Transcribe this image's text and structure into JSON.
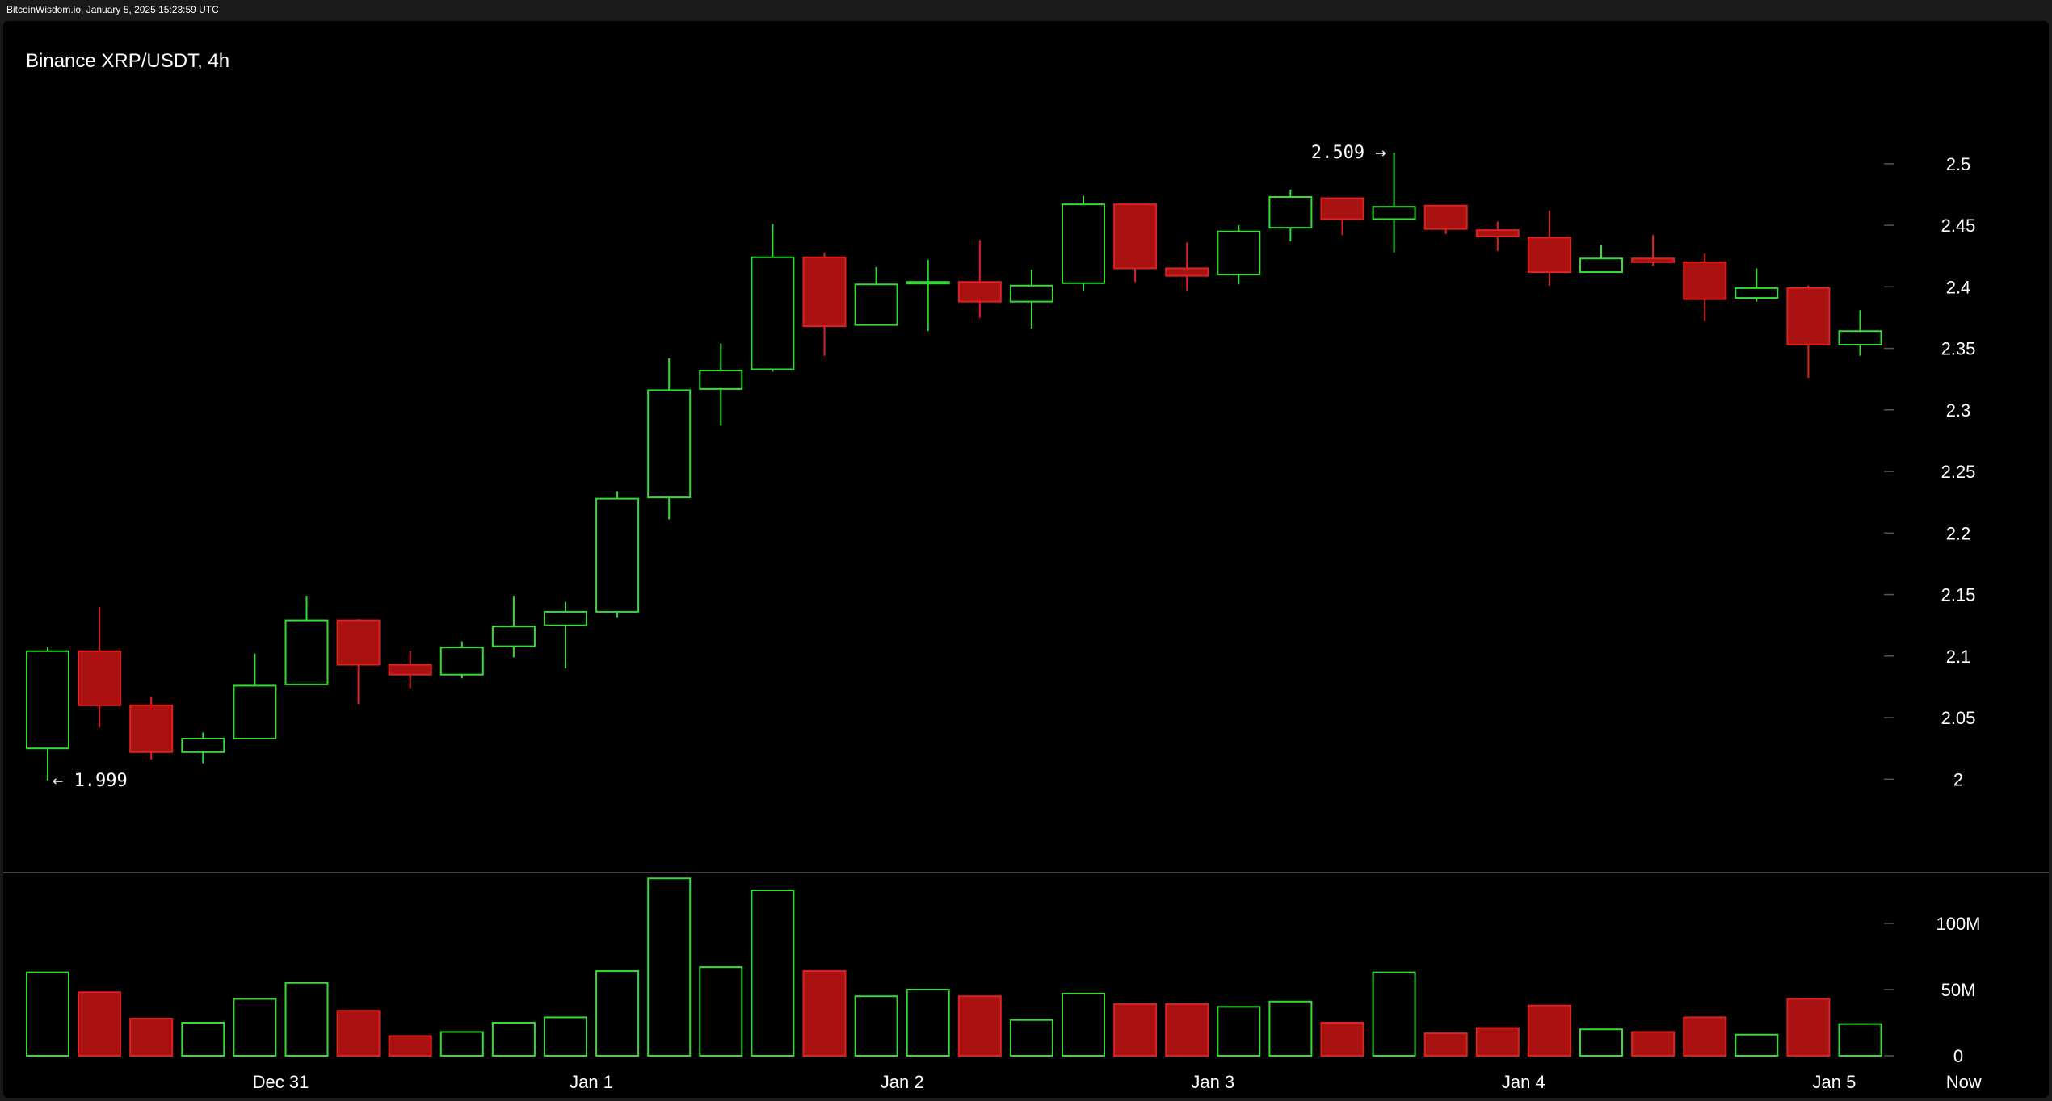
{
  "header": {
    "timestamp": "BitcoinWisdom.io, January 5, 2025 15:23:59 UTC",
    "title": "Binance XRP/USDT, 4h"
  },
  "colors": {
    "up": "#33dd33",
    "down": "#aa1111",
    "down_border": "#dd2222",
    "background": "#000000",
    "tick_mark": "#555555",
    "separator": "#555555"
  },
  "chart_data": {
    "type": "candlestick",
    "title": "Binance XRP/USDT, 4h",
    "price_ylim": [
      1.953,
      2.553
    ],
    "price_ticks": [
      "2",
      "2.05",
      "2.1",
      "2.15",
      "2.2",
      "2.25",
      "2.3",
      "2.35",
      "2.4",
      "2.45",
      "2.5"
    ],
    "volume_ylim": [
      0,
      150
    ],
    "volume_ticks": [
      {
        "value": 0,
        "label": "0"
      },
      {
        "value": 50,
        "label": "50M"
      },
      {
        "value": 100,
        "label": "100M"
      }
    ],
    "x_ticks": [
      {
        "index": 4.5,
        "label": "Dec 31"
      },
      {
        "index": 10.5,
        "label": "Jan 1"
      },
      {
        "index": 16.5,
        "label": "Jan 2"
      },
      {
        "index": 22.5,
        "label": "Jan 3"
      },
      {
        "index": 28.5,
        "label": "Jan 4"
      },
      {
        "index": 34.5,
        "label": "Jan 5"
      },
      {
        "index": 37.0,
        "label": "Now"
      }
    ],
    "annotations": {
      "high": {
        "index": 26,
        "value": 2.509,
        "label": "2.509 →"
      },
      "low": {
        "index": 0,
        "value": 1.999,
        "label": "← 1.999"
      }
    },
    "candles": [
      {
        "o": 2.025,
        "h": 2.107,
        "l": 1.999,
        "c": 2.104,
        "v": 63
      },
      {
        "o": 2.104,
        "h": 2.14,
        "l": 2.042,
        "c": 2.06,
        "v": 48
      },
      {
        "o": 2.06,
        "h": 2.067,
        "l": 2.016,
        "c": 2.022,
        "v": 28
      },
      {
        "o": 2.022,
        "h": 2.038,
        "l": 2.013,
        "c": 2.033,
        "v": 25
      },
      {
        "o": 2.033,
        "h": 2.102,
        "l": 2.033,
        "c": 2.076,
        "v": 43
      },
      {
        "o": 2.077,
        "h": 2.149,
        "l": 2.077,
        "c": 2.129,
        "v": 55
      },
      {
        "o": 2.129,
        "h": 2.13,
        "l": 2.061,
        "c": 2.093,
        "v": 34
      },
      {
        "o": 2.093,
        "h": 2.104,
        "l": 2.074,
        "c": 2.085,
        "v": 15
      },
      {
        "o": 2.085,
        "h": 2.112,
        "l": 2.082,
        "c": 2.107,
        "v": 18
      },
      {
        "o": 2.108,
        "h": 2.149,
        "l": 2.099,
        "c": 2.124,
        "v": 25
      },
      {
        "o": 2.125,
        "h": 2.144,
        "l": 2.09,
        "c": 2.136,
        "v": 29
      },
      {
        "o": 2.136,
        "h": 2.234,
        "l": 2.131,
        "c": 2.228,
        "v": 64
      },
      {
        "o": 2.229,
        "h": 2.342,
        "l": 2.211,
        "c": 2.316,
        "v": 134
      },
      {
        "o": 2.317,
        "h": 2.354,
        "l": 2.287,
        "c": 2.332,
        "v": 67
      },
      {
        "o": 2.333,
        "h": 2.451,
        "l": 2.331,
        "c": 2.424,
        "v": 125
      },
      {
        "o": 2.424,
        "h": 2.428,
        "l": 2.344,
        "c": 2.368,
        "v": 64
      },
      {
        "o": 2.369,
        "h": 2.416,
        "l": 2.369,
        "c": 2.402,
        "v": 45
      },
      {
        "o": 2.403,
        "h": 2.422,
        "l": 2.364,
        "c": 2.404,
        "v": 50
      },
      {
        "o": 2.404,
        "h": 2.438,
        "l": 2.375,
        "c": 2.388,
        "v": 45
      },
      {
        "o": 2.388,
        "h": 2.414,
        "l": 2.366,
        "c": 2.401,
        "v": 27
      },
      {
        "o": 2.403,
        "h": 2.474,
        "l": 2.397,
        "c": 2.467,
        "v": 47
      },
      {
        "o": 2.467,
        "h": 2.467,
        "l": 2.404,
        "c": 2.415,
        "v": 39
      },
      {
        "o": 2.415,
        "h": 2.436,
        "l": 2.397,
        "c": 2.409,
        "v": 39
      },
      {
        "o": 2.41,
        "h": 2.45,
        "l": 2.402,
        "c": 2.445,
        "v": 37
      },
      {
        "o": 2.448,
        "h": 2.479,
        "l": 2.437,
        "c": 2.473,
        "v": 41
      },
      {
        "o": 2.472,
        "h": 2.472,
        "l": 2.442,
        "c": 2.455,
        "v": 25
      },
      {
        "o": 2.455,
        "h": 2.509,
        "l": 2.428,
        "c": 2.465,
        "v": 63
      },
      {
        "o": 2.466,
        "h": 2.466,
        "l": 2.443,
        "c": 2.447,
        "v": 17
      },
      {
        "o": 2.446,
        "h": 2.453,
        "l": 2.429,
        "c": 2.441,
        "v": 21
      },
      {
        "o": 2.44,
        "h": 2.462,
        "l": 2.401,
        "c": 2.412,
        "v": 38
      },
      {
        "o": 2.412,
        "h": 2.434,
        "l": 2.412,
        "c": 2.423,
        "v": 20
      },
      {
        "o": 2.423,
        "h": 2.442,
        "l": 2.417,
        "c": 2.42,
        "v": 18
      },
      {
        "o": 2.42,
        "h": 2.427,
        "l": 2.372,
        "c": 2.39,
        "v": 29
      },
      {
        "o": 2.391,
        "h": 2.415,
        "l": 2.388,
        "c": 2.399,
        "v": 16
      },
      {
        "o": 2.399,
        "h": 2.401,
        "l": 2.326,
        "c": 2.353,
        "v": 43
      },
      {
        "o": 2.353,
        "h": 2.381,
        "l": 2.344,
        "c": 2.364,
        "v": 24
      }
    ]
  }
}
